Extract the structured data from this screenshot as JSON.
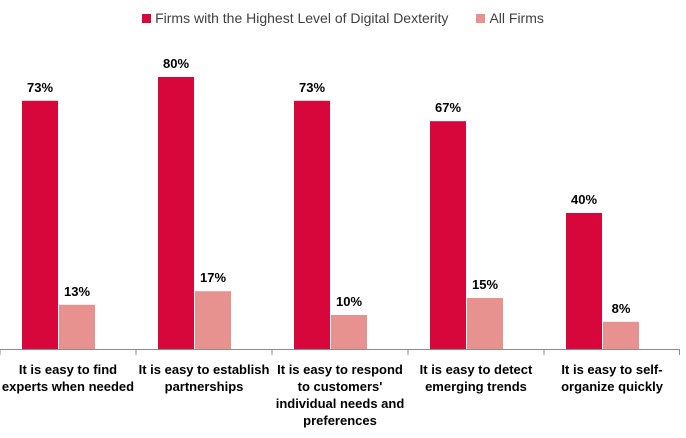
{
  "chart_data": {
    "type": "bar",
    "categories": [
      [
        "It is easy to find",
        "experts when needed"
      ],
      [
        "It is easy to establish",
        "partnerships"
      ],
      [
        "It is easy to respond",
        "to customers'",
        "individual needs and",
        "preferences"
      ],
      [
        "It is easy to detect",
        "emerging trends"
      ],
      [
        "It is easy to self-",
        "organize quickly"
      ]
    ],
    "series": [
      {
        "name": "Firms with the Highest Level of Digital Dexterity",
        "values": [
          73,
          80,
          73,
          67,
          40
        ],
        "labels": [
          "73%",
          "80%",
          "73%",
          "67%",
          "40%"
        ],
        "color": "#D7063B"
      },
      {
        "name": "All Firms",
        "values": [
          13,
          17,
          10,
          15,
          8
        ],
        "labels": [
          "13%",
          "17%",
          "10%",
          "15%",
          "8%"
        ],
        "color": "#E8928F"
      }
    ],
    "ylim": [
      0,
      100
    ],
    "grid": false,
    "legend_position": "top"
  }
}
